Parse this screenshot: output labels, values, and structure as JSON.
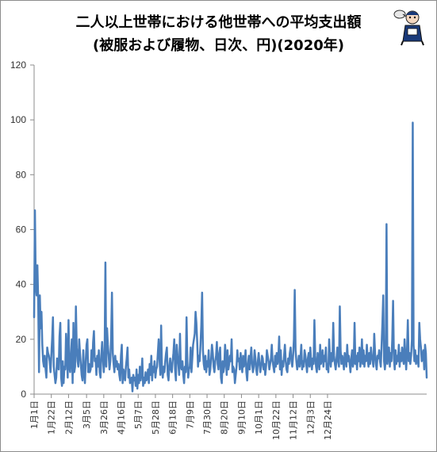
{
  "title_line1": "二人以上世帯における他世帯への平均支出額",
  "title_line2": "(被服および履物、日次、円)(2020年)",
  "chart_data": {
    "type": "line",
    "ylim": [
      0,
      120
    ],
    "yticks": [
      0,
      20,
      40,
      60,
      80,
      100,
      120
    ],
    "grid": false,
    "legend": "none",
    "line_color": "#4a7ebb",
    "x_start": "2020-01-01",
    "xticks": [
      {
        "label": "1月1日",
        "date": "2020-01-01"
      },
      {
        "label": "1月22日",
        "date": "2020-01-22"
      },
      {
        "label": "2月12日",
        "date": "2020-02-12"
      },
      {
        "label": "3月5日",
        "date": "2020-03-05"
      },
      {
        "label": "3月26日",
        "date": "2020-03-26"
      },
      {
        "label": "4月16日",
        "date": "2020-04-16"
      },
      {
        "label": "5月7日",
        "date": "2020-05-07"
      },
      {
        "label": "5月28日",
        "date": "2020-05-28"
      },
      {
        "label": "6月18日",
        "date": "2020-06-18"
      },
      {
        "label": "7月9日",
        "date": "2020-07-09"
      },
      {
        "label": "7月30日",
        "date": "2020-07-30"
      },
      {
        "label": "8月20日",
        "date": "2020-08-20"
      },
      {
        "label": "9月10日",
        "date": "2020-09-10"
      },
      {
        "label": "10月1日",
        "date": "2020-10-01"
      },
      {
        "label": "10月22日",
        "date": "2020-10-22"
      },
      {
        "label": "11月12日",
        "date": "2020-11-12"
      },
      {
        "label": "12月3日",
        "date": "2020-12-03"
      },
      {
        "label": "12月24日",
        "date": "2020-12-24"
      }
    ],
    "values": [
      28,
      67,
      40,
      36,
      47,
      34,
      8,
      36,
      24,
      30,
      18,
      12,
      10,
      14,
      9,
      6,
      17,
      15,
      14,
      12,
      8,
      14,
      20,
      28,
      10,
      7,
      4,
      6,
      13,
      11,
      9,
      21,
      26,
      6,
      3,
      12,
      4,
      10,
      9,
      22,
      15,
      6,
      27,
      10,
      8,
      14,
      20,
      4,
      26,
      8,
      10,
      32,
      17,
      12,
      10,
      20,
      15,
      11,
      7,
      5,
      16,
      8,
      4,
      12,
      18,
      20,
      8,
      11,
      8,
      9,
      16,
      10,
      19,
      23,
      12,
      13,
      7,
      14,
      10,
      16,
      8,
      6,
      14,
      19,
      13,
      8,
      13,
      48,
      10,
      24,
      18,
      14,
      9,
      12,
      21,
      37,
      15,
      11,
      8,
      14,
      10,
      12,
      9,
      11,
      7,
      5,
      14,
      18,
      4,
      9,
      7,
      5,
      10,
      13,
      17,
      6,
      9,
      4,
      5,
      6,
      1,
      7,
      5,
      6,
      3,
      9,
      2,
      7,
      4,
      10,
      5,
      8,
      13,
      3,
      6,
      4,
      8,
      5,
      6,
      9,
      4,
      11,
      7,
      14,
      5,
      10,
      8,
      12,
      6,
      9,
      10,
      15,
      20,
      13,
      7,
      25,
      9,
      6,
      10,
      8,
      12,
      15,
      17,
      7,
      5,
      10,
      13,
      9,
      8,
      12,
      15,
      20,
      9,
      5,
      18,
      14,
      11,
      7,
      22,
      10,
      9,
      12,
      7,
      4,
      10,
      8,
      28,
      12,
      6,
      9,
      10,
      17,
      8,
      13,
      18,
      20,
      22,
      30,
      26,
      19,
      10,
      14,
      12,
      18,
      25,
      37,
      16,
      11,
      9,
      14,
      8,
      12,
      10,
      16,
      7,
      9,
      13,
      18,
      15,
      10,
      8,
      12,
      14,
      19,
      11,
      9,
      15,
      17,
      6,
      4,
      12,
      8,
      10,
      18,
      13,
      7,
      16,
      9,
      11,
      14,
      12,
      20,
      8,
      10,
      9,
      4,
      7,
      10,
      16,
      12,
      13,
      9,
      15,
      11,
      8,
      14,
      10,
      12,
      16,
      8,
      5,
      11,
      14,
      9,
      13,
      17,
      11,
      8,
      10,
      16,
      13,
      9,
      7,
      12,
      15,
      11,
      8,
      10,
      14,
      13,
      9,
      11,
      7,
      10,
      16,
      14,
      12,
      9,
      11,
      13,
      18,
      12,
      10,
      8,
      14,
      10,
      15,
      11,
      13,
      21,
      9,
      16,
      7,
      12,
      10,
      14,
      18,
      12,
      9,
      8,
      13,
      11,
      15,
      17,
      12,
      10,
      14,
      20,
      38,
      16,
      12,
      9,
      11,
      14,
      10,
      13,
      18,
      9,
      12,
      10,
      16,
      14,
      11,
      8,
      13,
      15,
      10,
      17,
      12,
      9,
      13,
      11,
      27,
      14,
      10,
      8,
      15,
      12,
      9,
      18,
      11,
      13,
      16,
      10,
      14,
      12,
      17,
      9,
      11,
      8,
      20,
      13,
      10,
      15,
      12,
      26,
      14,
      11,
      9,
      13,
      17,
      12,
      10,
      32,
      16,
      11,
      14,
      12,
      9,
      15,
      13,
      10,
      18,
      12,
      14,
      11,
      8,
      13,
      16,
      10,
      12,
      26,
      11,
      14,
      9,
      15,
      12,
      17,
      10,
      13,
      20,
      11,
      16,
      10,
      14,
      12,
      18,
      13,
      10,
      15,
      11,
      17,
      14,
      12,
      10,
      22,
      15,
      11,
      9,
      14,
      13,
      16,
      12,
      10,
      18,
      26,
      36,
      12,
      9,
      13,
      62,
      11,
      14,
      17,
      10,
      15,
      12,
      20,
      34,
      13,
      9,
      16,
      11,
      14,
      12,
      18,
      10,
      15,
      12,
      17,
      13,
      11,
      20,
      14,
      9,
      16,
      27,
      12,
      15,
      11,
      14,
      20,
      99,
      18,
      12,
      16,
      11,
      14,
      13,
      10,
      26,
      20,
      17,
      12,
      14,
      16,
      9,
      18,
      15,
      6
    ]
  }
}
